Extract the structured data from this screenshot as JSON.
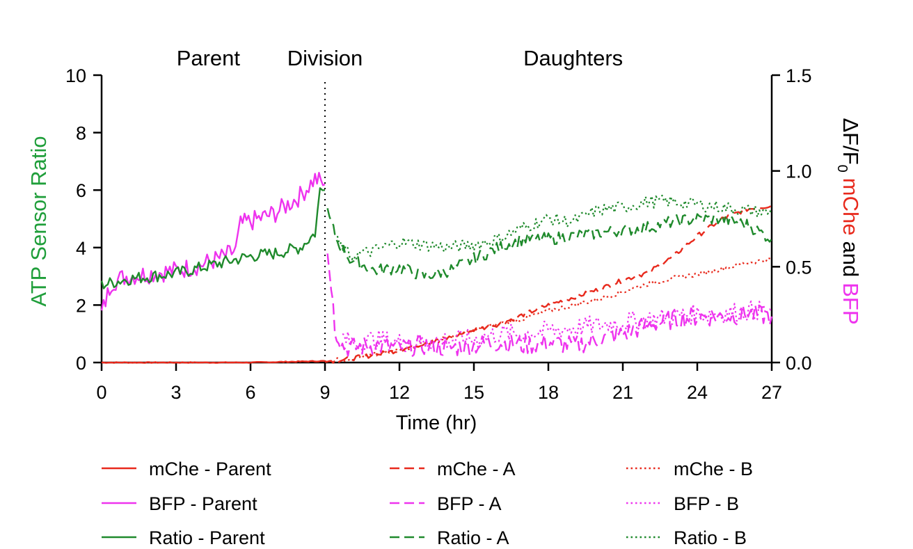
{
  "chart_data": {
    "type": "line",
    "xlabel": "Time (hr)",
    "ylabel_left": "ATP Sensor Ratio",
    "ylabel_right": {
      "prefix": "ΔF/F",
      "subscript": "0",
      "mche": "mChe",
      "and": "and",
      "bfp": "BFP"
    },
    "phases": [
      {
        "label": "Parent",
        "x": 4.3
      },
      {
        "label": "Division",
        "x": 9.0
      },
      {
        "label": "Daughters",
        "x": 19.0
      }
    ],
    "division_time": 9.0,
    "xlim": [
      0,
      27
    ],
    "xticks": [
      "0",
      "3",
      "6",
      "9",
      "12",
      "15",
      "18",
      "21",
      "24",
      "27"
    ],
    "ylim_left": [
      0,
      10
    ],
    "yticks_left": [
      "0",
      "2",
      "4",
      "6",
      "8",
      "10"
    ],
    "ylim_right": [
      0,
      1.5
    ],
    "yticks_right": [
      "0.0",
      "0.5",
      "1.0",
      "1.5"
    ],
    "colors": {
      "mche": "#e8291c",
      "bfp": "#ee33ee",
      "ratio": "#1f8a2c",
      "axis": "#000000",
      "left_label": "#1f9e3a"
    },
    "series": [
      {
        "name": "mChe - Parent",
        "axis": "right",
        "style": "solid",
        "colorKey": "mche",
        "x": [
          0,
          3,
          6,
          8,
          9
        ],
        "y": [
          0.0,
          0.0,
          0.0,
          0.005,
          0.008
        ]
      },
      {
        "name": "BFP - Parent",
        "axis": "left",
        "style": "solid",
        "colorKey": "bfp",
        "x": [
          0,
          0.4,
          1,
          2,
          3,
          4,
          5,
          5.4,
          5.6,
          6,
          7,
          8,
          8.6,
          9
        ],
        "y": [
          1.7,
          2.8,
          3.0,
          3.1,
          3.2,
          3.4,
          3.7,
          3.9,
          4.8,
          4.9,
          5.2,
          5.8,
          6.4,
          6.2
        ]
      },
      {
        "name": "Ratio - Parent",
        "axis": "left",
        "style": "solid",
        "colorKey": "ratio",
        "x": [
          0,
          1,
          2,
          3,
          4,
          5,
          6,
          7,
          8,
          8.6,
          8.8,
          9
        ],
        "y": [
          2.7,
          2.9,
          3.0,
          3.1,
          3.3,
          3.5,
          3.7,
          3.8,
          4.0,
          4.5,
          6.0,
          6.0
        ]
      },
      {
        "name": "mChe - A",
        "axis": "right",
        "style": "dash",
        "colorKey": "mche",
        "x": [
          9,
          10,
          11,
          12,
          13,
          14,
          15,
          16,
          17,
          18,
          19,
          20,
          21,
          22,
          23,
          24,
          25,
          26,
          27
        ],
        "y": [
          0.005,
          0.02,
          0.04,
          0.065,
          0.1,
          0.13,
          0.17,
          0.2,
          0.25,
          0.3,
          0.34,
          0.38,
          0.43,
          0.47,
          0.55,
          0.66,
          0.75,
          0.8,
          0.82
        ]
      },
      {
        "name": "BFP - A",
        "axis": "left",
        "style": "dash",
        "colorKey": "bfp",
        "x": [
          9.1,
          9.25,
          9.4,
          9.7,
          10,
          11,
          12,
          13,
          14,
          15,
          16,
          17,
          18,
          19,
          20,
          21,
          22,
          23,
          24,
          25,
          26,
          27
        ],
        "y": [
          3.8,
          2.8,
          1.2,
          0.6,
          0.5,
          0.6,
          0.5,
          0.6,
          0.5,
          0.6,
          0.7,
          0.6,
          0.7,
          0.6,
          0.8,
          1.0,
          1.3,
          1.5,
          1.6,
          1.6,
          1.7,
          1.6
        ]
      },
      {
        "name": "Ratio - A",
        "axis": "left",
        "style": "dash",
        "colorKey": "ratio",
        "x": [
          9.1,
          9.5,
          10,
          11,
          12,
          13,
          14,
          15,
          16,
          17,
          18,
          19,
          20,
          21,
          22,
          23,
          24,
          25,
          26,
          27
        ],
        "y": [
          5.2,
          4.2,
          3.6,
          3.2,
          3.3,
          3.0,
          3.2,
          3.6,
          4.0,
          4.3,
          4.3,
          4.4,
          4.5,
          4.6,
          4.7,
          4.9,
          5.0,
          5.0,
          4.8,
          4.3
        ]
      },
      {
        "name": "mChe - B",
        "axis": "right",
        "style": "dot",
        "colorKey": "mche",
        "x": [
          9,
          10,
          11,
          12,
          13,
          14,
          15,
          16,
          17,
          18,
          19,
          20,
          21,
          22,
          23,
          24,
          25,
          26,
          27
        ],
        "y": [
          0.005,
          0.02,
          0.04,
          0.065,
          0.1,
          0.13,
          0.17,
          0.2,
          0.23,
          0.27,
          0.3,
          0.33,
          0.37,
          0.41,
          0.44,
          0.46,
          0.49,
          0.52,
          0.54
        ]
      },
      {
        "name": "BFP - B",
        "axis": "left",
        "style": "dot",
        "colorKey": "bfp",
        "x": [
          9.7,
          10,
          11,
          12,
          13,
          14,
          15,
          16,
          17,
          18,
          19,
          20,
          21,
          22,
          23,
          24,
          25,
          26,
          27
        ],
        "y": [
          0.9,
          0.7,
          0.8,
          0.7,
          0.7,
          0.8,
          0.8,
          1.0,
          1.0,
          1.1,
          1.2,
          1.3,
          1.4,
          1.5,
          1.6,
          1.7,
          1.7,
          1.8,
          1.8
        ]
      },
      {
        "name": "Ratio - B",
        "axis": "left",
        "style": "dot",
        "colorKey": "ratio",
        "x": [
          9.5,
          10,
          11,
          12,
          13,
          14,
          15,
          16,
          17,
          18,
          19,
          20,
          21,
          22,
          23,
          24,
          25,
          26,
          27
        ],
        "y": [
          4.2,
          3.7,
          3.9,
          4.2,
          4.1,
          4.0,
          4.1,
          4.3,
          4.7,
          5.0,
          4.9,
          5.3,
          5.4,
          5.6,
          5.6,
          5.5,
          5.4,
          5.3,
          5.2
        ]
      }
    ],
    "legend": [
      {
        "label": "mChe - Parent",
        "colorKey": "mche",
        "style": "solid"
      },
      {
        "label": "mChe - A",
        "colorKey": "mche",
        "style": "dash"
      },
      {
        "label": "mChe - B",
        "colorKey": "mche",
        "style": "dot"
      },
      {
        "label": "BFP - Parent",
        "colorKey": "bfp",
        "style": "solid"
      },
      {
        "label": "BFP - A",
        "colorKey": "bfp",
        "style": "dash"
      },
      {
        "label": "BFP - B",
        "colorKey": "bfp",
        "style": "dot"
      },
      {
        "label": "Ratio - Parent",
        "colorKey": "ratio",
        "style": "solid"
      },
      {
        "label": "Ratio - A",
        "colorKey": "ratio",
        "style": "dash"
      },
      {
        "label": "Ratio - B",
        "colorKey": "ratio",
        "style": "dot"
      }
    ]
  }
}
